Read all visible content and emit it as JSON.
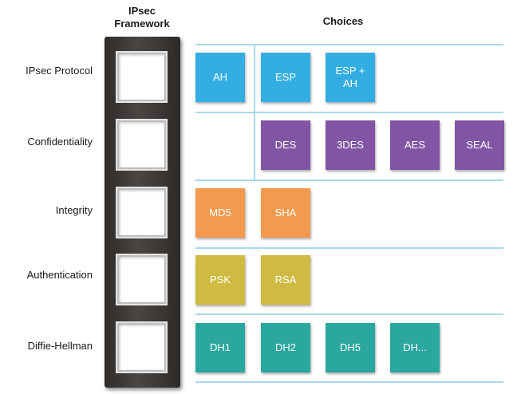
{
  "headers": {
    "framework": "IPsec\nFramework",
    "choices": "Choices"
  },
  "rows": [
    {
      "label": "IPsec Protocol",
      "choices": [
        "AH",
        "ESP",
        "ESP +\nAH"
      ]
    },
    {
      "label": "Confidentiality",
      "choices": [
        "DES",
        "3DES",
        "AES",
        "SEAL"
      ]
    },
    {
      "label": "Integrity",
      "choices": [
        "MD5",
        "SHA"
      ]
    },
    {
      "label": "Authentication",
      "choices": [
        "PSK",
        "RSA"
      ]
    },
    {
      "label": "Diffie-Hellman",
      "choices": [
        "DH1",
        "DH2",
        "DH5",
        "DH..."
      ]
    }
  ],
  "colors": {
    "ipsec_protocol": "#34aee2",
    "confidentiality": "#8255a4",
    "integrity": "#f39a4f",
    "authentication": "#d0bb42",
    "diffie_hellman": "#2aa79f",
    "divider": "#a9d8ee",
    "framework": "#3a3634"
  }
}
